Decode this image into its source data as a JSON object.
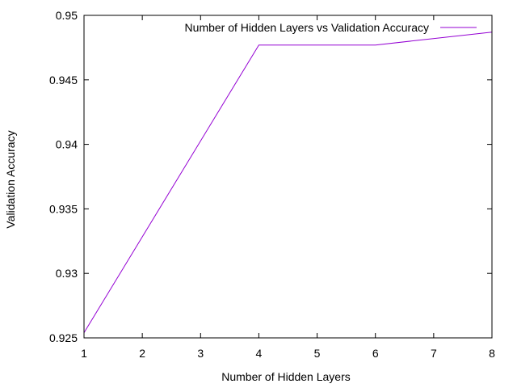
{
  "chart_data": {
    "type": "line",
    "title": "",
    "xlabel": "Number of Hidden Layers",
    "ylabel": "Validation Accuracy",
    "xlim": [
      1,
      8
    ],
    "ylim": [
      0.925,
      0.95
    ],
    "x_ticks": [
      "1",
      "2",
      "3",
      "4",
      "5",
      "6",
      "7",
      "8"
    ],
    "y_ticks": [
      "0.925",
      "0.93",
      "0.935",
      "0.94",
      "0.945",
      "0.95"
    ],
    "grid": false,
    "legend_position": "top-right",
    "series": [
      {
        "name": "Number of Hidden Layers vs Validation Accuracy",
        "color": "#9400d3",
        "x": [
          1,
          4,
          6,
          8
        ],
        "y": [
          0.9254,
          0.9477,
          0.9477,
          0.9487
        ]
      }
    ]
  }
}
